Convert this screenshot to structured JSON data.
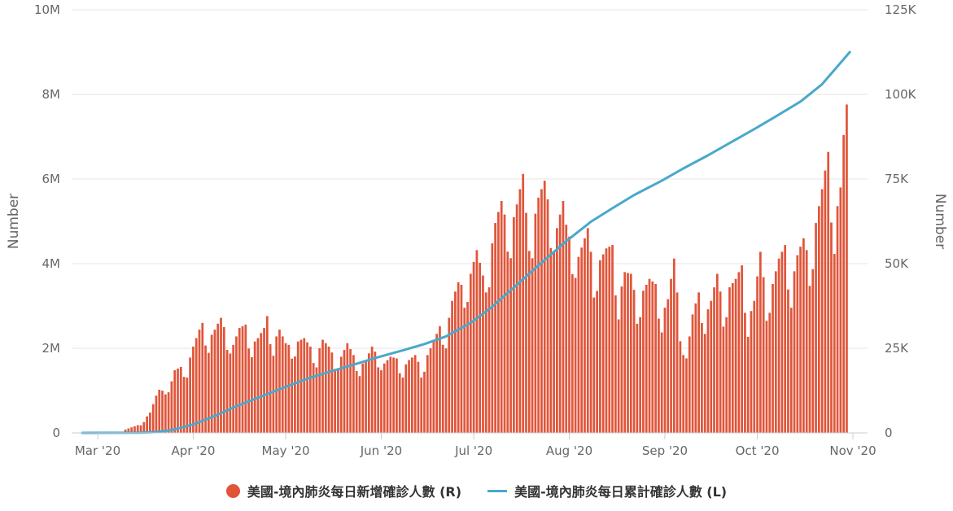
{
  "chart_data": {
    "type": "bar+line",
    "title": "",
    "x_axis": {
      "type": "date",
      "range": [
        "2020-02-25",
        "2020-10-31"
      ],
      "tick_labels": [
        "Mar '20",
        "Apr '20",
        "May '20",
        "Jun '20",
        "Jul '20",
        "Aug '20",
        "Sep '20",
        "Oct '20",
        "Nov '20"
      ],
      "tick_dates": [
        "2020-03-01",
        "2020-04-01",
        "2020-05-01",
        "2020-06-01",
        "2020-07-01",
        "2020-08-01",
        "2020-09-01",
        "2020-10-01",
        "2020-11-01"
      ]
    },
    "y_left": {
      "label": "Number",
      "range": [
        0,
        10000000
      ],
      "tick_values": [
        0,
        2000000,
        4000000,
        6000000,
        8000000,
        10000000
      ],
      "tick_labels": [
        "0",
        "2M",
        "4M",
        "6M",
        "8M",
        "10M"
      ]
    },
    "y_right": {
      "label": "Number",
      "range": [
        0,
        125000
      ],
      "tick_values": [
        0,
        25000,
        50000,
        75000,
        100000,
        125000
      ],
      "tick_labels": [
        "0",
        "25K",
        "50K",
        "75K",
        "100K",
        "125K"
      ]
    },
    "grid": true,
    "legend_position": "bottom-center",
    "series": [
      {
        "name": "美國-境內肺炎每日新增確診人數 (R)",
        "type": "bar",
        "axis": "right",
        "color": "#e0553a",
        "points": [
          [
            "2020-03-10",
            1000
          ],
          [
            "2020-03-15",
            2600
          ],
          [
            "2020-03-18",
            6000
          ],
          [
            "2020-03-20",
            11000
          ],
          [
            "2020-03-22",
            14500
          ],
          [
            "2020-03-24",
            12000
          ],
          [
            "2020-03-26",
            18500
          ],
          [
            "2020-03-28",
            19500
          ],
          [
            "2020-03-30",
            19000
          ],
          [
            "2020-04-01",
            25500
          ],
          [
            "2020-04-03",
            30500
          ],
          [
            "2020-04-04",
            32500
          ],
          [
            "2020-04-06",
            27500
          ],
          [
            "2020-04-08",
            30500
          ],
          [
            "2020-04-10",
            34000
          ],
          [
            "2020-04-12",
            28500
          ],
          [
            "2020-04-14",
            26000
          ],
          [
            "2020-04-16",
            31000
          ],
          [
            "2020-04-18",
            32000
          ],
          [
            "2020-04-20",
            26000
          ],
          [
            "2020-04-22",
            28000
          ],
          [
            "2020-04-24",
            31000
          ],
          [
            "2020-04-25",
            34500
          ],
          [
            "2020-04-27",
            26500
          ],
          [
            "2020-04-29",
            30500
          ],
          [
            "2020-05-01",
            26500
          ],
          [
            "2020-05-03",
            25500
          ],
          [
            "2020-05-05",
            27000
          ],
          [
            "2020-05-07",
            28000
          ],
          [
            "2020-05-09",
            25500
          ],
          [
            "2020-05-11",
            22500
          ],
          [
            "2020-05-13",
            27500
          ],
          [
            "2020-05-15",
            25500
          ],
          [
            "2020-05-17",
            22000
          ],
          [
            "2020-05-19",
            22500
          ],
          [
            "2020-05-21",
            26500
          ],
          [
            "2020-05-23",
            23000
          ],
          [
            "2020-05-25",
            19500
          ],
          [
            "2020-05-27",
            21500
          ],
          [
            "2020-05-29",
            25500
          ],
          [
            "2020-05-31",
            22500
          ],
          [
            "2020-06-02",
            20500
          ],
          [
            "2020-06-04",
            22500
          ],
          [
            "2020-06-06",
            22000
          ],
          [
            "2020-06-08",
            19000
          ],
          [
            "2020-06-10",
            21500
          ],
          [
            "2020-06-12",
            23000
          ],
          [
            "2020-06-14",
            19000
          ],
          [
            "2020-06-16",
            23000
          ],
          [
            "2020-06-18",
            27000
          ],
          [
            "2020-06-20",
            31500
          ],
          [
            "2020-06-22",
            29000
          ],
          [
            "2020-06-24",
            39000
          ],
          [
            "2020-06-26",
            44500
          ],
          [
            "2020-06-28",
            43000
          ],
          [
            "2020-06-30",
            47000
          ],
          [
            "2020-07-02",
            54000
          ],
          [
            "2020-07-04",
            46500
          ],
          [
            "2020-07-06",
            50000
          ],
          [
            "2020-07-08",
            62000
          ],
          [
            "2020-07-10",
            68500
          ],
          [
            "2020-07-11",
            64500
          ],
          [
            "2020-07-13",
            60000
          ],
          [
            "2020-07-15",
            67500
          ],
          [
            "2020-07-17",
            76500
          ],
          [
            "2020-07-18",
            65000
          ],
          [
            "2020-07-20",
            60000
          ],
          [
            "2020-07-22",
            69500
          ],
          [
            "2020-07-24",
            74500
          ],
          [
            "2020-07-26",
            63500
          ],
          [
            "2020-07-28",
            60500
          ],
          [
            "2020-07-30",
            68500
          ],
          [
            "2020-07-31",
            61500
          ],
          [
            "2020-08-02",
            54500
          ],
          [
            "2020-08-04",
            52000
          ],
          [
            "2020-08-06",
            57500
          ],
          [
            "2020-08-07",
            60500
          ],
          [
            "2020-08-09",
            46500
          ],
          [
            "2020-08-11",
            51000
          ],
          [
            "2020-08-13",
            54500
          ],
          [
            "2020-08-15",
            55500
          ],
          [
            "2020-08-17",
            39000
          ],
          [
            "2020-08-19",
            47500
          ],
          [
            "2020-08-21",
            47000
          ],
          [
            "2020-08-23",
            37500
          ],
          [
            "2020-08-25",
            42000
          ],
          [
            "2020-08-27",
            45500
          ],
          [
            "2020-08-29",
            44000
          ],
          [
            "2020-08-31",
            34500
          ],
          [
            "2020-09-02",
            39500
          ],
          [
            "2020-09-04",
            51500
          ],
          [
            "2020-09-06",
            31500
          ],
          [
            "2020-09-08",
            22000
          ],
          [
            "2020-09-10",
            35000
          ],
          [
            "2020-09-12",
            41500
          ],
          [
            "2020-09-14",
            34000
          ],
          [
            "2020-09-16",
            39000
          ],
          [
            "2020-09-18",
            47000
          ],
          [
            "2020-09-20",
            36500
          ],
          [
            "2020-09-22",
            43000
          ],
          [
            "2020-09-24",
            45500
          ],
          [
            "2020-09-26",
            49500
          ],
          [
            "2020-09-28",
            33000
          ],
          [
            "2020-09-30",
            39000
          ],
          [
            "2020-10-02",
            53500
          ],
          [
            "2020-10-04",
            38500
          ],
          [
            "2020-10-06",
            44000
          ],
          [
            "2020-10-08",
            51500
          ],
          [
            "2020-10-10",
            55500
          ],
          [
            "2020-10-12",
            43000
          ],
          [
            "2020-10-14",
            52500
          ],
          [
            "2020-10-16",
            57500
          ],
          [
            "2020-10-18",
            50500
          ],
          [
            "2020-10-20",
            62000
          ],
          [
            "2020-10-22",
            72000
          ],
          [
            "2020-10-24",
            83000
          ],
          [
            "2020-10-26",
            61500
          ],
          [
            "2020-10-28",
            72500
          ],
          [
            "2020-10-29",
            88000
          ],
          [
            "2020-10-30",
            97000
          ]
        ]
      },
      {
        "name": "美國-境內肺炎每日累計確診人數 (L)",
        "type": "line",
        "axis": "left",
        "color": "#4aa8cb",
        "points": [
          [
            "2020-02-25",
            0
          ],
          [
            "2020-03-15",
            4000
          ],
          [
            "2020-03-20",
            20000
          ],
          [
            "2020-03-25",
            66000
          ],
          [
            "2020-04-01",
            200000
          ],
          [
            "2020-04-08",
            400000
          ],
          [
            "2020-04-15",
            630000
          ],
          [
            "2020-04-22",
            830000
          ],
          [
            "2020-04-30",
            1060000
          ],
          [
            "2020-05-08",
            1280000
          ],
          [
            "2020-05-15",
            1440000
          ],
          [
            "2020-05-22",
            1590000
          ],
          [
            "2020-05-31",
            1790000
          ],
          [
            "2020-06-08",
            1950000
          ],
          [
            "2020-06-15",
            2100000
          ],
          [
            "2020-06-22",
            2280000
          ],
          [
            "2020-06-30",
            2600000
          ],
          [
            "2020-07-07",
            2980000
          ],
          [
            "2020-07-15",
            3500000
          ],
          [
            "2020-07-22",
            3960000
          ],
          [
            "2020-07-31",
            4530000
          ],
          [
            "2020-08-08",
            4990000
          ],
          [
            "2020-08-15",
            5310000
          ],
          [
            "2020-08-22",
            5620000
          ],
          [
            "2020-08-31",
            5960000
          ],
          [
            "2020-09-07",
            6250000
          ],
          [
            "2020-09-15",
            6560000
          ],
          [
            "2020-09-22",
            6850000
          ],
          [
            "2020-09-30",
            7180000
          ],
          [
            "2020-10-07",
            7480000
          ],
          [
            "2020-10-15",
            7830000
          ],
          [
            "2020-10-22",
            8240000
          ],
          [
            "2020-10-31",
            9000000
          ]
        ]
      }
    ]
  }
}
